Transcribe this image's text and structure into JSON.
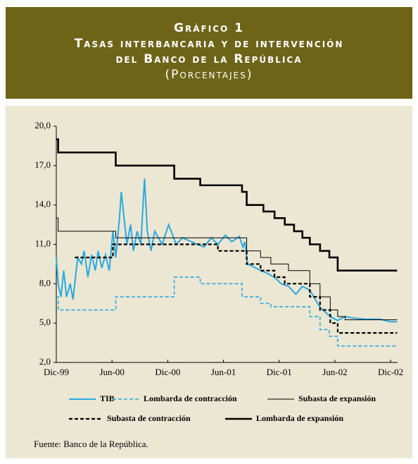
{
  "chart_data": {
    "type": "line",
    "title": "Gráfico 1",
    "subtitle": [
      "Tasas interbancaria y de intervención",
      "del Banco de la República",
      "(Porcentajes)"
    ],
    "source": "Fuente: Banco de la República.",
    "xlim": [
      0,
      36.75
    ],
    "xticks": [
      {
        "value": 0,
        "label": "Dic-99"
      },
      {
        "value": 6,
        "label": "Jun-00"
      },
      {
        "value": 12,
        "label": "Dic-00"
      },
      {
        "value": 18,
        "label": "Jun-01"
      },
      {
        "value": 24,
        "label": "Dic-01"
      },
      {
        "value": 30,
        "label": "Jun-02"
      },
      {
        "value": 36,
        "label": "Dic-02"
      }
    ],
    "ylim": [
      2,
      20
    ],
    "yticks": [
      {
        "value": 20,
        "label": "20,0"
      },
      {
        "value": 17,
        "label": "17,0"
      },
      {
        "value": 14,
        "label": "14,0"
      },
      {
        "value": 11,
        "label": "11,0"
      },
      {
        "value": 8,
        "label": "8,0"
      },
      {
        "value": 5,
        "label": "5,0"
      },
      {
        "value": 2,
        "label": "2,0"
      }
    ],
    "series": [
      {
        "name": "TIB",
        "color": "#29a9e1",
        "style": "solid",
        "step": false,
        "x": [
          0,
          0.2,
          0.5,
          0.8,
          1.1,
          1.5,
          1.8,
          2.3,
          2.7,
          3,
          3.4,
          3.8,
          4.2,
          4.5,
          4.9,
          5.3,
          5.7,
          6.1,
          6.4,
          6.8,
          7,
          7.3,
          7.6,
          8,
          8.3,
          8.7,
          9.1,
          9.3,
          9.5,
          9.8,
          10.2,
          10.6,
          11.4,
          12.1,
          12.9,
          13.6,
          15.2,
          15.9,
          16.7,
          17.4,
          18.2,
          18.9,
          19.7,
          20.1,
          20.3,
          20.6,
          21.2,
          22,
          22.7,
          23.5,
          24.2,
          25,
          25.8,
          26.5,
          27.3,
          28.4,
          29.5,
          30.3,
          31.1,
          31.8,
          33.3,
          34.8,
          36,
          36.7
        ],
        "values": [
          10,
          8,
          7,
          9,
          7,
          8,
          6.8,
          10,
          9.5,
          10.5,
          8.5,
          10.2,
          9,
          10.5,
          9.2,
          10.2,
          9,
          12,
          10,
          13,
          15,
          13,
          11,
          12.5,
          10.5,
          12,
          11,
          13.5,
          16,
          12,
          10.5,
          12,
          11,
          12.5,
          11,
          11.5,
          11,
          10.8,
          11.5,
          11,
          11.7,
          11.2,
          11.6,
          10.8,
          11.2,
          9.5,
          9.3,
          9,
          8.8,
          8.5,
          8,
          7.8,
          7.2,
          7.8,
          7.5,
          6.2,
          5.5,
          5.2,
          5.5,
          5.4,
          5.3,
          5.3,
          5.1,
          5.1
        ]
      },
      {
        "name": "Lombarda de contracción",
        "color": "#29a9e1",
        "style": "dashed",
        "step": true,
        "x": [
          0,
          0.2,
          6.4,
          12.7,
          15.5,
          20,
          22,
          23.1,
          27.3,
          28.4,
          29.4,
          30.3,
          36.7
        ],
        "values": [
          7,
          6,
          7,
          8.5,
          8,
          7,
          6.5,
          6.25,
          5.5,
          4.5,
          4,
          3.25,
          3.25
        ]
      },
      {
        "name": "Subasta de expansión",
        "color": "#000000",
        "style": "solid",
        "step": true,
        "x": [
          0,
          0.2,
          6.4,
          20.5,
          22,
          23.1,
          25,
          27.3,
          28.4,
          29.5,
          30.3,
          31.1,
          36.7
        ],
        "values": [
          13,
          12,
          11.5,
          10.5,
          10,
          9.5,
          9,
          8,
          7,
          6,
          5.5,
          5.25,
          5.25
        ]
      },
      {
        "name": "Subasta de contracción",
        "color": "#000000",
        "style": "dashed",
        "step": true,
        "x": [
          2,
          6.1,
          17.4,
          20.5,
          22,
          23.5,
          24.6,
          27.3,
          28.4,
          29.5,
          30.3,
          36.7
        ],
        "values": [
          10,
          11,
          10.5,
          9.5,
          9,
          8.5,
          8,
          7,
          6,
          5,
          4.25,
          4.25
        ]
      },
      {
        "name": "Lombarda de expansión",
        "color": "#000000",
        "style": "solid",
        "step": true,
        "x": [
          0,
          0.2,
          6.4,
          12.7,
          15.5,
          20,
          20.5,
          22.3,
          23.5,
          24.6,
          25.6,
          26.5,
          27.3,
          28.4,
          29.4,
          30.3,
          36.7
        ],
        "values": [
          19,
          18,
          17,
          16,
          15.5,
          15,
          14,
          13.5,
          13,
          12.5,
          12,
          11.5,
          11,
          10.5,
          10,
          9,
          9
        ]
      }
    ]
  }
}
